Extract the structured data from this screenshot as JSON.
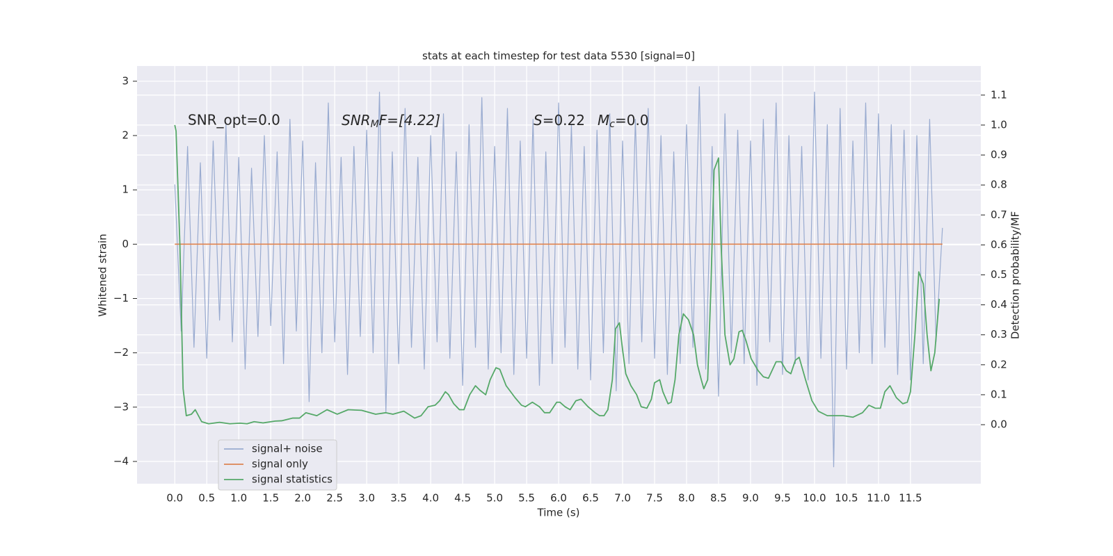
{
  "chart_data": {
    "type": "line",
    "title": "stats at each timestep for test data 5530 [signal=0]",
    "xlabel": "Time (s)",
    "ylabel": "Whitened strain",
    "y2label": "Detection probability/MF",
    "annotations": [
      [
        "SNR_opt=0.0"
      ],
      [
        "SNR",
        "M",
        "F=[4.22]"
      ],
      [
        "S",
        "=0.22"
      ],
      [
        "M",
        "c",
        "=0.0"
      ]
    ],
    "xlim": [
      -0.59,
      12.6
    ],
    "ylim": [
      -4.41,
      3.28
    ],
    "y2lim": [
      -0.197,
      1.197
    ],
    "grid": true,
    "legend": "lower left",
    "xticks": [
      {
        "value": 0,
        "label": "0.0"
      },
      {
        "value": 0.5,
        "label": "0.5"
      },
      {
        "value": 1,
        "label": "1.0"
      },
      {
        "value": 1.5,
        "label": "1.5"
      },
      {
        "value": 2,
        "label": "2.0"
      },
      {
        "value": 2.5,
        "label": "2.5"
      },
      {
        "value": 3,
        "label": "3.0"
      },
      {
        "value": 3.5,
        "label": "3.5"
      },
      {
        "value": 4,
        "label": "4.0"
      },
      {
        "value": 4.5,
        "label": "4.5"
      },
      {
        "value": 5,
        "label": "5.0"
      },
      {
        "value": 5.5,
        "label": "5.5"
      },
      {
        "value": 6,
        "label": "6.0"
      },
      {
        "value": 6.5,
        "label": "6.5"
      },
      {
        "value": 7,
        "label": "7.0"
      },
      {
        "value": 7.5,
        "label": "7.5"
      },
      {
        "value": 8,
        "label": "8.0"
      },
      {
        "value": 8.5,
        "label": "8.5"
      },
      {
        "value": 9,
        "label": "9.0"
      },
      {
        "value": 9.5,
        "label": "9.5"
      },
      {
        "value": 10,
        "label": "10.0"
      },
      {
        "value": 10.5,
        "label": "10.5"
      },
      {
        "value": 11,
        "label": "11.0"
      },
      {
        "value": 11.5,
        "label": "11.5"
      }
    ],
    "yticks": [
      {
        "value": -4,
        "label": "−4"
      },
      {
        "value": -3,
        "label": "−3"
      },
      {
        "value": -2,
        "label": "−2"
      },
      {
        "value": -1,
        "label": "−1"
      },
      0,
      1,
      2,
      3
    ],
    "y2ticks": [
      {
        "value": 0,
        "label": "0.0"
      },
      0.1,
      0.2,
      0.3,
      0.4,
      0.5,
      0.6,
      0.7,
      0.8,
      0.9,
      {
        "value": 1,
        "label": "1.0"
      },
      1.1
    ],
    "series": [
      {
        "name": "signal+ noise",
        "color": "#99abd0",
        "x": [
          0,
          0.1,
          0.2,
          0.3,
          0.4,
          0.5,
          0.6,
          0.7,
          0.8,
          0.9,
          1,
          1.1,
          1.2,
          1.3,
          1.4,
          1.5,
          1.6,
          1.7,
          1.8,
          1.9,
          2,
          2.1,
          2.2,
          2.3,
          2.4,
          2.5,
          2.6,
          2.7,
          2.8,
          2.9,
          3,
          3.1,
          3.2,
          3.3,
          3.4,
          3.5,
          3.6,
          3.7,
          3.8,
          3.9,
          4,
          4.1,
          4.2,
          4.3,
          4.4,
          4.5,
          4.6,
          4.7,
          4.8,
          4.9,
          5,
          5.1,
          5.2,
          5.3,
          5.4,
          5.5,
          5.6,
          5.7,
          5.8,
          5.9,
          6,
          6.1,
          6.2,
          6.3,
          6.4,
          6.5,
          6.6,
          6.7,
          6.8,
          6.9,
          7,
          7.1,
          7.2,
          7.3,
          7.4,
          7.5,
          7.6,
          7.7,
          7.8,
          7.9,
          8,
          8.1,
          8.2,
          8.3,
          8.4,
          8.5,
          8.6,
          8.7,
          8.8,
          8.9,
          9,
          9.1,
          9.2,
          9.3,
          9.4,
          9.5,
          9.6,
          9.7,
          9.8,
          9.9,
          10,
          10.1,
          10.2,
          10.3,
          10.4,
          10.5,
          10.6,
          10.7,
          10.8,
          10.9,
          11,
          11.1,
          11.2,
          11.3,
          11.4,
          11.5,
          11.6,
          11.7,
          11.8,
          11.9,
          12
        ],
        "values": [
          1.1,
          -1.6,
          1.8,
          -1.9,
          1.5,
          -2.1,
          1.9,
          -1.4,
          2.2,
          -1.8,
          1.6,
          -2.3,
          1.4,
          -1.7,
          2.0,
          -1.5,
          1.7,
          -2.2,
          2.3,
          -1.6,
          1.9,
          -2.9,
          1.5,
          -2.0,
          2.6,
          -1.8,
          1.6,
          -2.4,
          1.8,
          -1.7,
          2.1,
          -2.0,
          2.8,
          -3.1,
          1.7,
          -2.2,
          2.5,
          -1.9,
          1.6,
          -2.3,
          2.0,
          -1.8,
          2.4,
          -2.1,
          1.7,
          -2.6,
          2.2,
          -1.9,
          2.7,
          -2.3,
          1.8,
          -2.0,
          2.5,
          -2.4,
          1.9,
          -2.1,
          2.3,
          -2.6,
          1.7,
          -2.2,
          2.6,
          -1.9,
          2.2,
          -2.3,
          1.8,
          -2.5,
          2.1,
          -2.0,
          2.4,
          -2.7,
          1.9,
          -2.2,
          2.3,
          -1.8,
          2.5,
          -2.1,
          2.0,
          -2.4,
          1.7,
          -2.2,
          2.2,
          -1.9,
          2.9,
          -2.3,
          1.8,
          -2.8,
          2.4,
          -2.0,
          2.1,
          -2.2,
          1.9,
          -2.6,
          2.3,
          -1.8,
          2.6,
          -2.4,
          2.0,
          -2.2,
          1.8,
          -2.5,
          2.8,
          -2.1,
          2.2,
          -4.1,
          2.5,
          -2.3,
          1.9,
          -2.0,
          2.6,
          -2.2,
          2.4,
          -1.9,
          2.2,
          -2.4,
          2.1,
          -2.5,
          2.0,
          -2.2,
          2.3,
          -1.8,
          0.3
        ]
      },
      {
        "name": "signal only",
        "color": "#dd8452",
        "x": [
          0,
          12
        ],
        "values": [
          0,
          0
        ]
      },
      {
        "name": "signal statistics",
        "color": "#55a868",
        "axis": "y2",
        "x": [
          0,
          0.02,
          0.08,
          0.13,
          0.18,
          0.26,
          0.32,
          0.42,
          0.53,
          0.7,
          0.86,
          1.02,
          1.13,
          1.24,
          1.38,
          1.57,
          1.67,
          1.84,
          1.95,
          2.05,
          2.22,
          2.38,
          2.54,
          2.71,
          2.92,
          3.14,
          3.3,
          3.41,
          3.58,
          3.75,
          3.85,
          3.96,
          4.07,
          4.14,
          4.23,
          4.28,
          4.36,
          4.45,
          4.52,
          4.61,
          4.7,
          4.77,
          4.86,
          4.93,
          5.02,
          5.08,
          5.18,
          5.32,
          5.42,
          5.48,
          5.59,
          5.7,
          5.78,
          5.86,
          5.97,
          6.02,
          6.1,
          6.18,
          6.27,
          6.35,
          6.46,
          6.57,
          6.64,
          6.71,
          6.77,
          6.84,
          6.89,
          6.95,
          7.0,
          7.05,
          7.13,
          7.22,
          7.29,
          7.38,
          7.45,
          7.5,
          7.58,
          7.63,
          7.71,
          7.76,
          7.82,
          7.88,
          7.95,
          8.03,
          8.11,
          8.17,
          8.23,
          8.27,
          8.33,
          8.38,
          8.43,
          8.5,
          8.54,
          8.6,
          8.68,
          8.74,
          8.82,
          8.87,
          8.93,
          9.01,
          9.12,
          9.2,
          9.28,
          9.4,
          9.48,
          9.56,
          9.63,
          9.7,
          9.76,
          9.86,
          9.96,
          10.06,
          10.2,
          10.3,
          10.45,
          10.6,
          10.75,
          10.85,
          10.95,
          11.03,
          11.1,
          11.18,
          11.28,
          11.38,
          11.45,
          11.5,
          11.57,
          11.63,
          11.7,
          11.76,
          11.82,
          11.88,
          11.95
        ],
        "values": [
          1.0,
          0.98,
          0.6,
          0.12,
          0.03,
          0.035,
          0.05,
          0.01,
          0.003,
          0.008,
          0.003,
          0.005,
          0.003,
          0.01,
          0.006,
          0.012,
          0.013,
          0.022,
          0.022,
          0.04,
          0.03,
          0.05,
          0.035,
          0.05,
          0.048,
          0.035,
          0.04,
          0.035,
          0.045,
          0.022,
          0.03,
          0.06,
          0.065,
          0.08,
          0.11,
          0.1,
          0.07,
          0.05,
          0.05,
          0.1,
          0.13,
          0.115,
          0.1,
          0.15,
          0.19,
          0.185,
          0.13,
          0.09,
          0.065,
          0.06,
          0.075,
          0.06,
          0.04,
          0.04,
          0.075,
          0.075,
          0.06,
          0.05,
          0.08,
          0.085,
          0.06,
          0.04,
          0.03,
          0.03,
          0.05,
          0.15,
          0.32,
          0.34,
          0.25,
          0.17,
          0.13,
          0.1,
          0.06,
          0.055,
          0.085,
          0.14,
          0.15,
          0.11,
          0.07,
          0.075,
          0.15,
          0.3,
          0.37,
          0.35,
          0.3,
          0.2,
          0.15,
          0.12,
          0.15,
          0.45,
          0.85,
          0.89,
          0.6,
          0.3,
          0.2,
          0.22,
          0.31,
          0.315,
          0.28,
          0.22,
          0.18,
          0.16,
          0.155,
          0.21,
          0.21,
          0.18,
          0.17,
          0.215,
          0.225,
          0.15,
          0.08,
          0.045,
          0.03,
          0.03,
          0.03,
          0.025,
          0.04,
          0.065,
          0.055,
          0.055,
          0.11,
          0.13,
          0.09,
          0.07,
          0.075,
          0.11,
          0.3,
          0.51,
          0.47,
          0.3,
          0.18,
          0.24,
          0.42
        ]
      }
    ]
  }
}
